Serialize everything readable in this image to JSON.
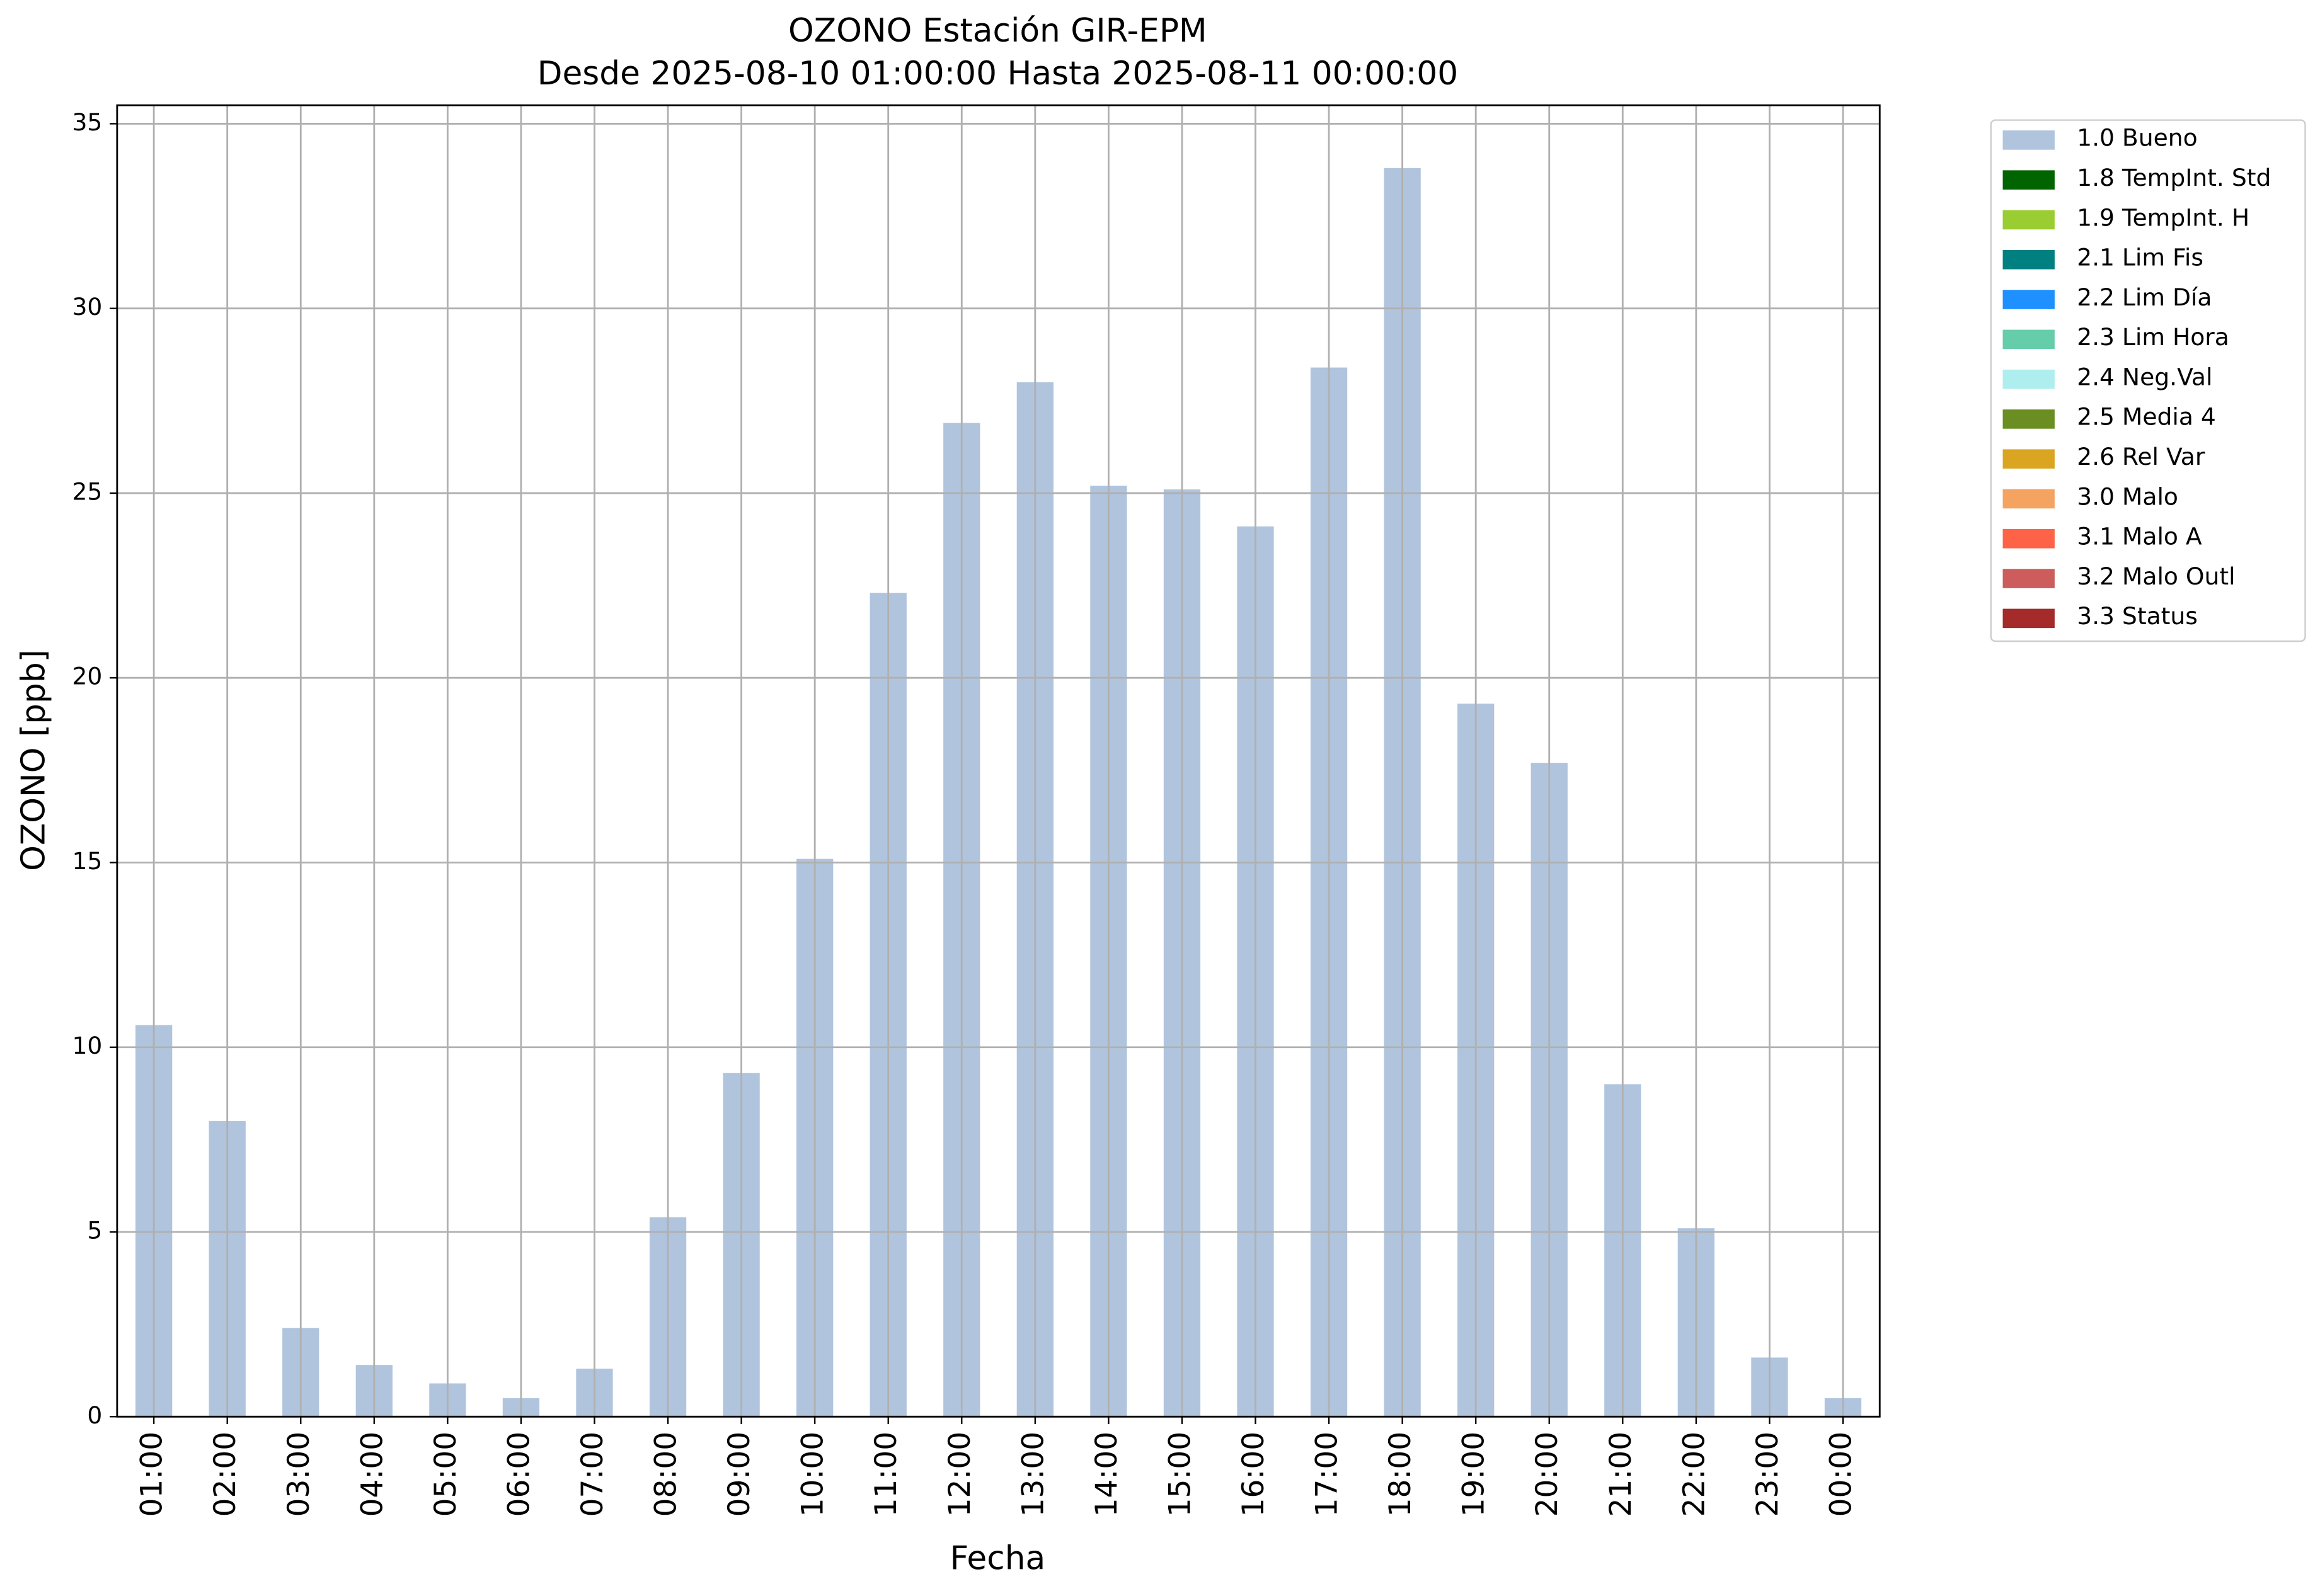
{
  "chart_data": {
    "type": "bar",
    "title": "OZONO Estación GIR-EPM",
    "subtitle": "Desde 2025-08-10 01:00:00 Hasta 2025-08-11 00:00:00",
    "x_label": "Fecha",
    "y_label": "OZONO [ppb]",
    "categories": [
      "01:00",
      "02:00",
      "03:00",
      "04:00",
      "05:00",
      "06:00",
      "07:00",
      "08:00",
      "09:00",
      "10:00",
      "11:00",
      "12:00",
      "13:00",
      "14:00",
      "15:00",
      "16:00",
      "17:00",
      "18:00",
      "19:00",
      "20:00",
      "21:00",
      "22:00",
      "23:00",
      "00:00"
    ],
    "series": [
      {
        "name": "1.0 Bueno",
        "color": "#b0c4de",
        "values": [
          10.6,
          8.0,
          2.4,
          1.4,
          0.9,
          0.5,
          1.3,
          5.4,
          9.3,
          15.1,
          22.3,
          26.9,
          28.0,
          25.2,
          25.1,
          24.1,
          28.4,
          33.8,
          19.3,
          17.7,
          9.0,
          5.1,
          1.6,
          0.5
        ]
      }
    ],
    "legend_entries": [
      {
        "name": "1.8 TempInt. Std",
        "color": "#006400"
      },
      {
        "name": "1.9 TempInt. H",
        "color": "#9acd32"
      },
      {
        "name": "2.1 Lim Fis",
        "color": "#008080"
      },
      {
        "name": "2.2 Lim Día",
        "color": "#1e90ff"
      },
      {
        "name": "2.3 Lim Hora",
        "color": "#66cdaa"
      },
      {
        "name": "2.4 Neg.Val",
        "color": "#afeeee"
      },
      {
        "name": "2.5 Media 4",
        "color": "#6b8e23"
      },
      {
        "name": "2.6 Rel Var",
        "color": "#daa520"
      },
      {
        "name": "3.0 Malo",
        "color": "#f4a460"
      },
      {
        "name": "3.1 Malo A",
        "color": "#ff6347"
      },
      {
        "name": "3.2 Malo Outl",
        "color": "#cd5c5c"
      },
      {
        "name": "3.3 Status",
        "color": "#a52a2a"
      }
    ],
    "ylim": [
      0,
      35.5
    ],
    "yticks": [
      0,
      5,
      10,
      15,
      20,
      25,
      30,
      35
    ],
    "grid": true,
    "legend": "outside-upper-right"
  }
}
